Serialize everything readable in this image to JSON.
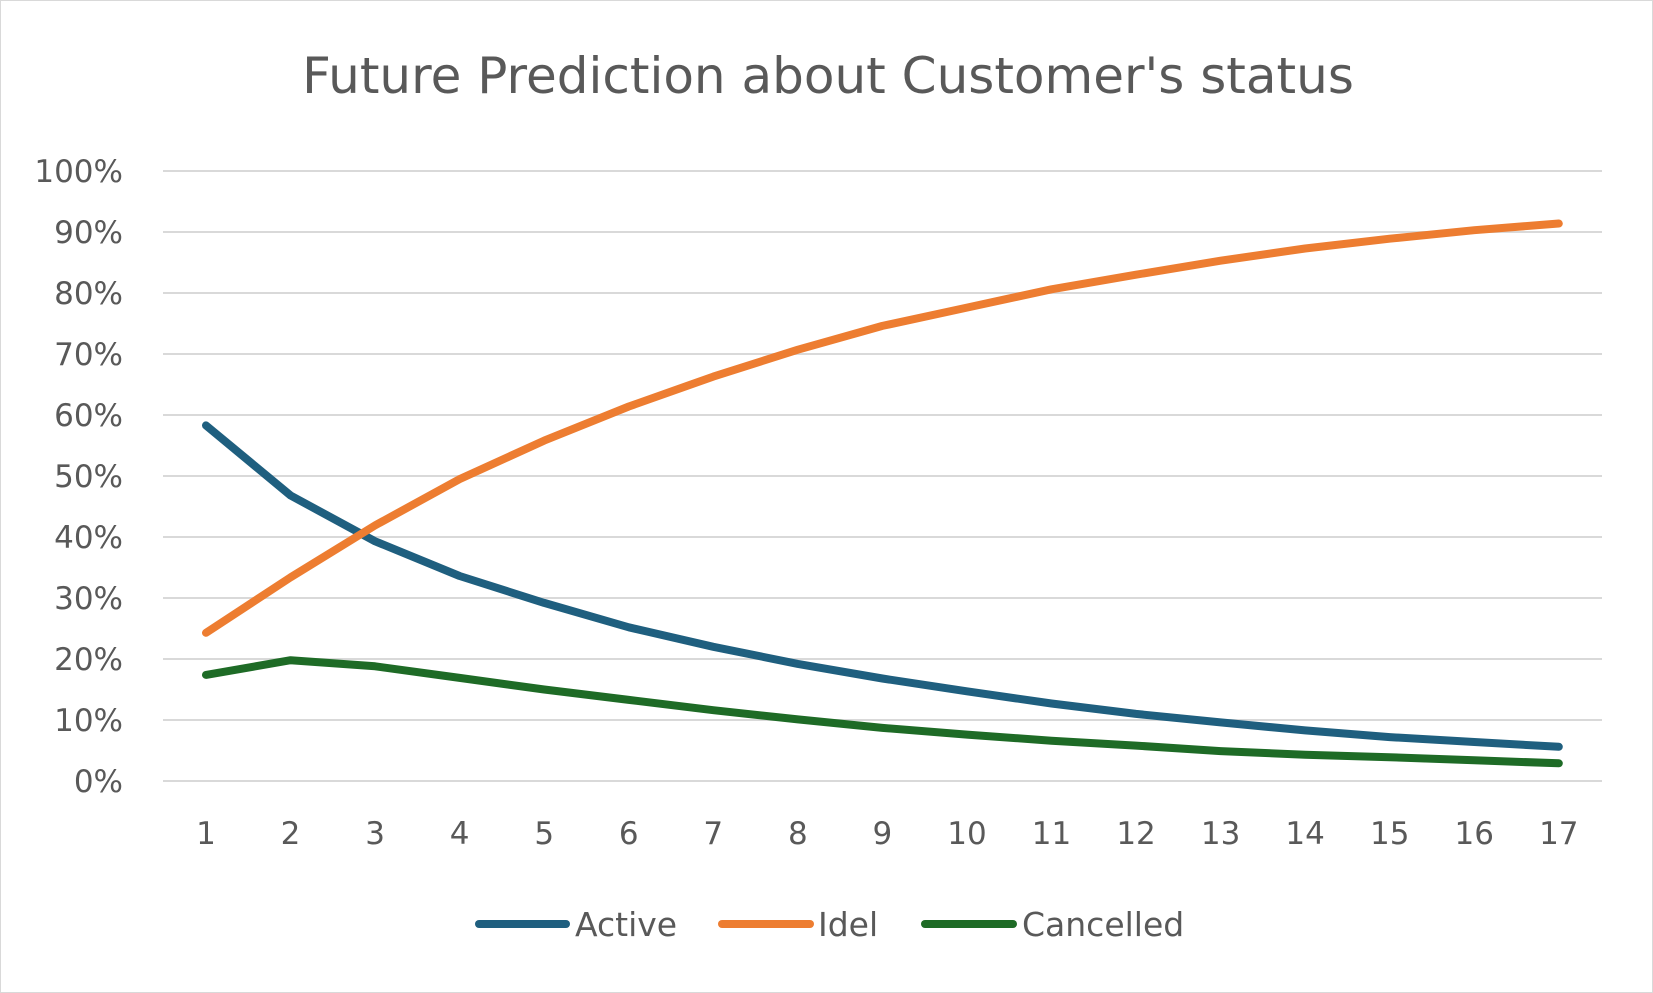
{
  "chart_data": {
    "type": "line",
    "title": "Future Prediction about Customer's status",
    "xlabel": "",
    "ylabel": "",
    "categories": [
      "1",
      "2",
      "3",
      "4",
      "5",
      "6",
      "7",
      "8",
      "9",
      "10",
      "11",
      "12",
      "13",
      "14",
      "15",
      "16",
      "17"
    ],
    "y_tick_labels": [
      "0%",
      "10%",
      "20%",
      "30%",
      "40%",
      "50%",
      "60%",
      "70%",
      "80%",
      "90%",
      "100%"
    ],
    "ylim": [
      0,
      100
    ],
    "grid": true,
    "legend_position": "bottom",
    "series": [
      {
        "name": "Active",
        "color": "#1f5f7f",
        "values": [
          58.3,
          46.8,
          39.3,
          33.6,
          29.2,
          25.2,
          22.0,
          19.2,
          16.8,
          14.7,
          12.7,
          11.0,
          9.6,
          8.3,
          7.2,
          6.4,
          5.6
        ]
      },
      {
        "name": "Idel",
        "color": "#ed7d31",
        "values": [
          24.3,
          33.4,
          41.9,
          49.5,
          55.8,
          61.4,
          66.3,
          70.7,
          74.6,
          77.6,
          80.6,
          83.0,
          85.3,
          87.3,
          88.9,
          90.3,
          91.4
        ]
      },
      {
        "name": "Cancelled",
        "color": "#1e6b26",
        "values": [
          17.4,
          19.8,
          18.8,
          16.9,
          15.0,
          13.3,
          11.6,
          10.1,
          8.7,
          7.6,
          6.6,
          5.8,
          4.9,
          4.3,
          3.9,
          3.4,
          2.9
        ]
      }
    ]
  }
}
